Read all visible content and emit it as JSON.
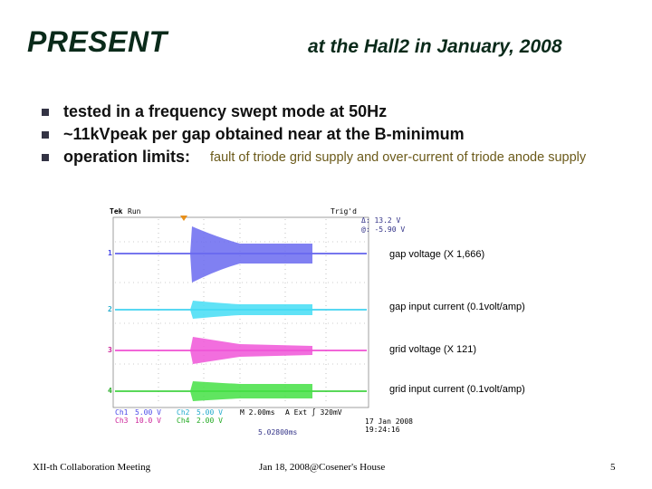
{
  "header": {
    "title": "PRESENT",
    "subtitle": "at the Hall2 in January, 2008"
  },
  "bullets": [
    {
      "text": "tested in a frequency swept mode at 50Hz"
    },
    {
      "text": "~11kVpeak per gap obtained near at the B-minimum"
    },
    {
      "text": "operation limits:",
      "detail": "fault of triode grid supply and over-current of triode anode supply"
    }
  ],
  "scope": {
    "brand": "Tek",
    "state": "Run",
    "trigger": "Trig'd",
    "delta": "Δ: 13.2 V",
    "at": "@: -5.90 V",
    "channels": [
      "1",
      "2",
      "3",
      "4"
    ],
    "readouts": [
      "Ch1",
      "5.00 V",
      "Ch2",
      "5.00 V",
      "M 2.00ms",
      "A  Ext  ∫  320mV",
      "Ch3",
      "10.0 V",
      "Ch4",
      "2.00 V"
    ],
    "position": "5.02800ms",
    "date": "17 Jan 2008",
    "time": "19:24:16"
  },
  "annotations": [
    "gap voltage (X 1,666)",
    "gap input current (0.1volt/amp)",
    "grid voltage (X 121)",
    "grid input current (0.1volt/amp)"
  ],
  "footer": {
    "left": "XII-th Collaboration Meeting",
    "center": "Jan 18, 2008@Cosener's House",
    "page": "5"
  }
}
